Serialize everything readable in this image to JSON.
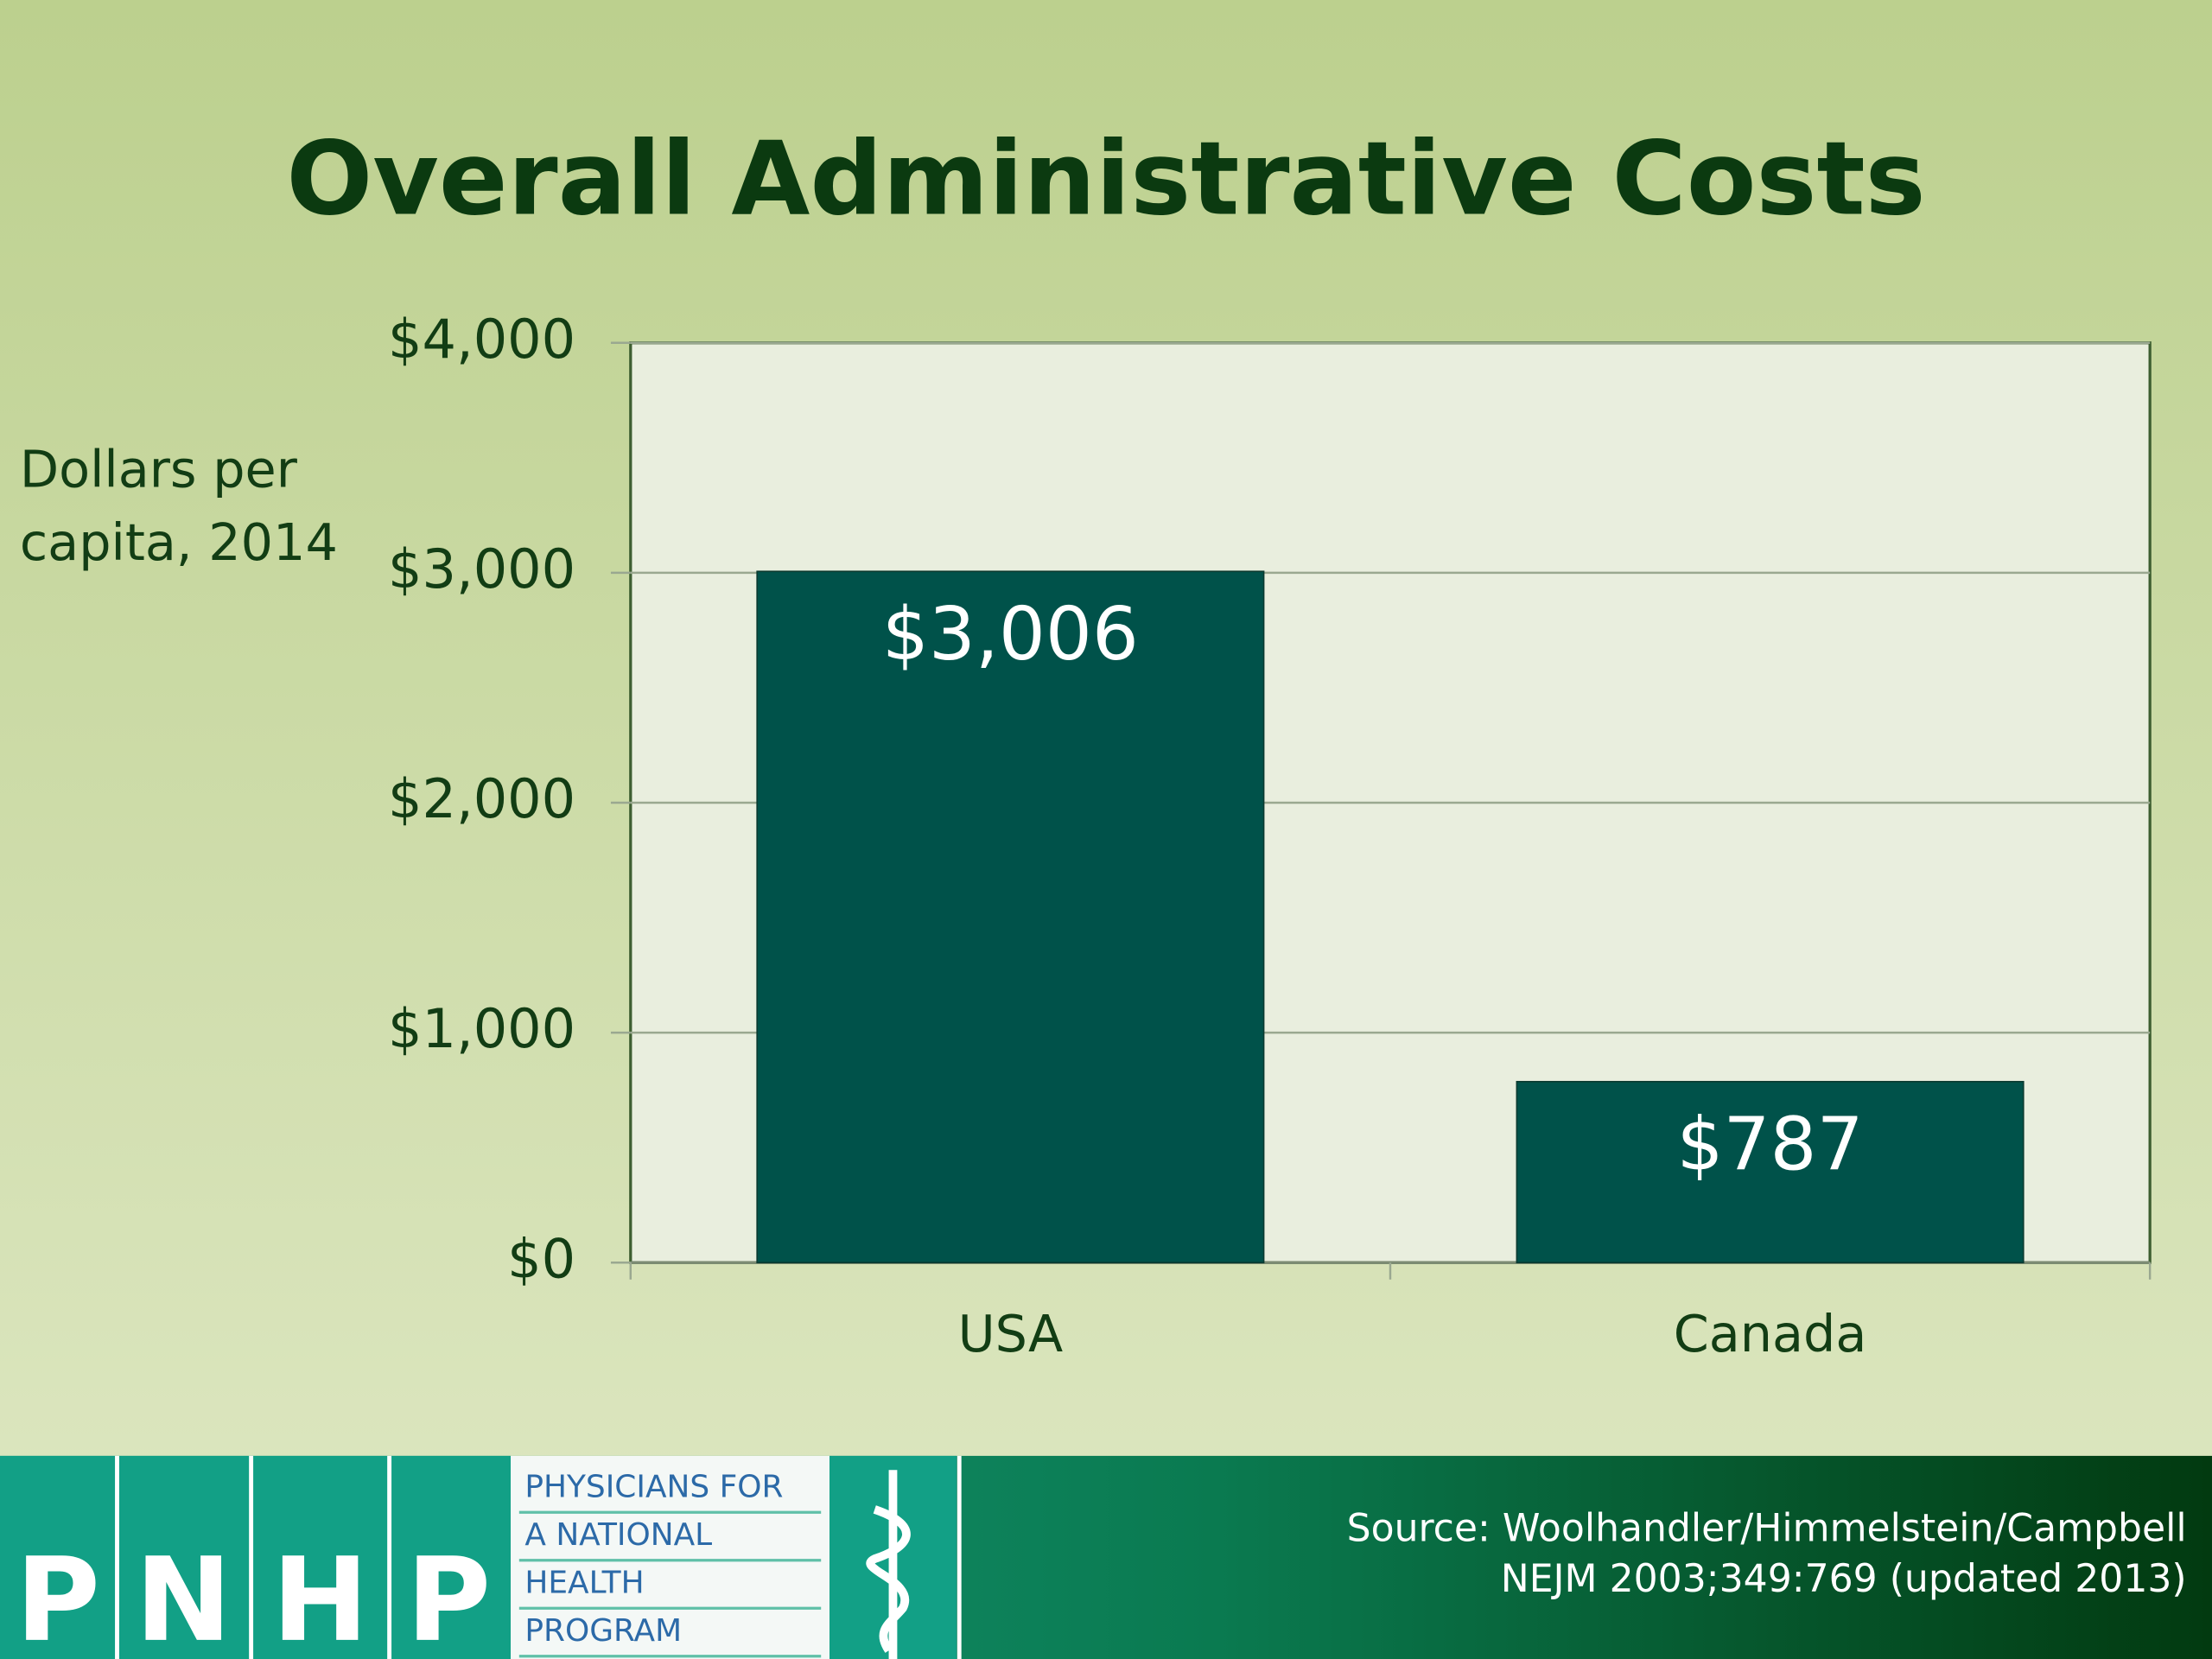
{
  "chart_data": {
    "type": "bar",
    "title": "Overall Administrative Costs",
    "y_label": "Dollars per capita, 2014",
    "categories": [
      "USA",
      "Canada"
    ],
    "values": [
      3006,
      787
    ],
    "value_labels": [
      "$3,006",
      "$787"
    ],
    "color": "#00524a",
    "ylim": [
      0,
      4000
    ],
    "yticks": [
      {
        "value": 0,
        "label": "$0"
      },
      {
        "value": 1000,
        "label": "$1,000"
      },
      {
        "value": 2000,
        "label": "$2,000"
      },
      {
        "value": 3000,
        "label": "$3,000"
      },
      {
        "value": 4000,
        "label": "$4,000"
      }
    ],
    "grid": true
  },
  "footer": {
    "logo_letters": [
      "P",
      "N",
      "H",
      "P"
    ],
    "org_name_lines": [
      "PHYSICIANS FOR",
      "A NATIONAL",
      "HEALTH",
      "PROGRAM"
    ],
    "source_lines": [
      "Source: Woolhandler/Himmelstein/Campbell",
      "NEJM 2003;349:769 (updated 2013)"
    ]
  }
}
